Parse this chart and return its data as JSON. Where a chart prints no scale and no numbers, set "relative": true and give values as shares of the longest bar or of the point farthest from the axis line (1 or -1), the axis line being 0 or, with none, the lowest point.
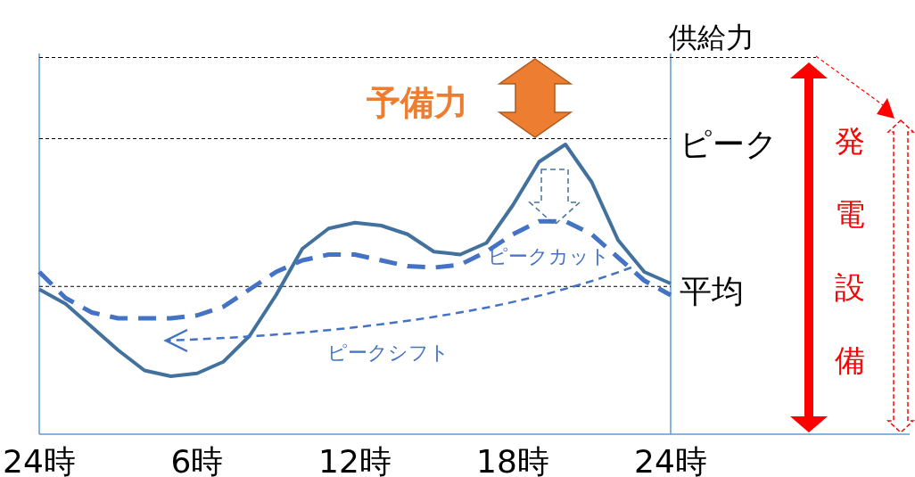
{
  "chart_data": {
    "type": "line",
    "relative": true,
    "categories": [
      "24時",
      null,
      null,
      null,
      null,
      null,
      "6時",
      null,
      null,
      null,
      null,
      null,
      "12時",
      null,
      null,
      null,
      null,
      null,
      "18時",
      null,
      null,
      null,
      null,
      null,
      "24時"
    ],
    "series": [
      {
        "color": "#41719c",
        "line_style": "solid",
        "values": [
          0.5,
          0.45,
          0.37,
          0.29,
          0.22,
          0.2,
          0.21,
          0.25,
          0.34,
          0.48,
          0.64,
          0.71,
          0.73,
          0.72,
          0.69,
          0.63,
          0.62,
          0.66,
          0.79,
          0.94,
          1,
          0.87,
          0.67,
          0.56,
          0.52
        ]
      },
      {
        "color": "#4472c4",
        "line_style": "dashed",
        "values": [
          0.56,
          0.47,
          0.42,
          0.4,
          0.4,
          0.4,
          0.41,
          0.44,
          0.5,
          0.56,
          0.6,
          0.62,
          0.62,
          0.6,
          0.58,
          0.575,
          0.585,
          0.63,
          0.69,
          0.735,
          0.735,
          0.69,
          0.61,
          0.53,
          0.48
        ]
      }
    ],
    "ref_lines": [
      {
        "axis": "y",
        "value": 1.3,
        "label": "供給力",
        "line_style": "dashed",
        "color": "#000000"
      },
      {
        "axis": "y",
        "value": 1.02,
        "label": "ピーク",
        "line_style": "dashed",
        "color": "#000000"
      },
      {
        "axis": "y",
        "value": 0.51,
        "label": "平均",
        "line_style": "dashed",
        "color": "#000000"
      }
    ],
    "annotations": [
      "予備力",
      "ピークカット",
      "ピークシフト",
      "発電設備"
    ],
    "grid": false,
    "marker": "none"
  }
}
